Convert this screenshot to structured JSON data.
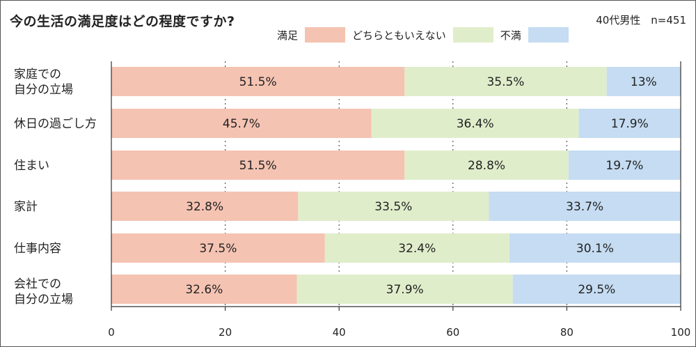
{
  "header": {
    "title": "今の生活の満足度はどの程度ですか?",
    "note": "40代男性　n=451"
  },
  "legend": [
    {
      "label": "満足",
      "color": "#f5c3b2"
    },
    {
      "label": "どちらともいえない",
      "color": "#e0edcb"
    },
    {
      "label": "不満",
      "color": "#c5dcf2"
    }
  ],
  "chart_data": {
    "type": "bar",
    "orientation": "horizontal",
    "stacked": true,
    "title": "今の生活の満足度はどの程度ですか?",
    "categories": [
      "家庭での\n自分の立場",
      "休日の過ごし方",
      "住まい",
      "家計",
      "仕事内容",
      "会社での\n自分の立場"
    ],
    "series": [
      {
        "name": "満足",
        "color": "#f5c3b2",
        "values": [
          51.5,
          45.7,
          51.5,
          32.8,
          37.5,
          32.6
        ],
        "labels": [
          "51.5%",
          "45.7%",
          "51.5%",
          "32.8%",
          "37.5%",
          "32.6%"
        ]
      },
      {
        "name": "どちらともいえない",
        "color": "#e0edcb",
        "values": [
          35.5,
          36.4,
          28.8,
          33.5,
          32.4,
          37.9
        ],
        "labels": [
          "35.5%",
          "36.4%",
          "28.8%",
          "33.5%",
          "32.4%",
          "37.9%"
        ]
      },
      {
        "name": "不満",
        "color": "#c5dcf2",
        "values": [
          13,
          17.9,
          19.7,
          33.7,
          30.1,
          29.5
        ],
        "labels": [
          "13%",
          "17.9%",
          "19.7%",
          "33.7%",
          "30.1%",
          "29.5%"
        ]
      }
    ],
    "xlim": [
      0,
      100
    ],
    "xticks": [
      0,
      20,
      40,
      60,
      80,
      100
    ],
    "xtick_labels": [
      "0",
      "20",
      "40",
      "60",
      "80",
      "100"
    ],
    "grid": "vertical dotted",
    "legend_position": "top"
  }
}
